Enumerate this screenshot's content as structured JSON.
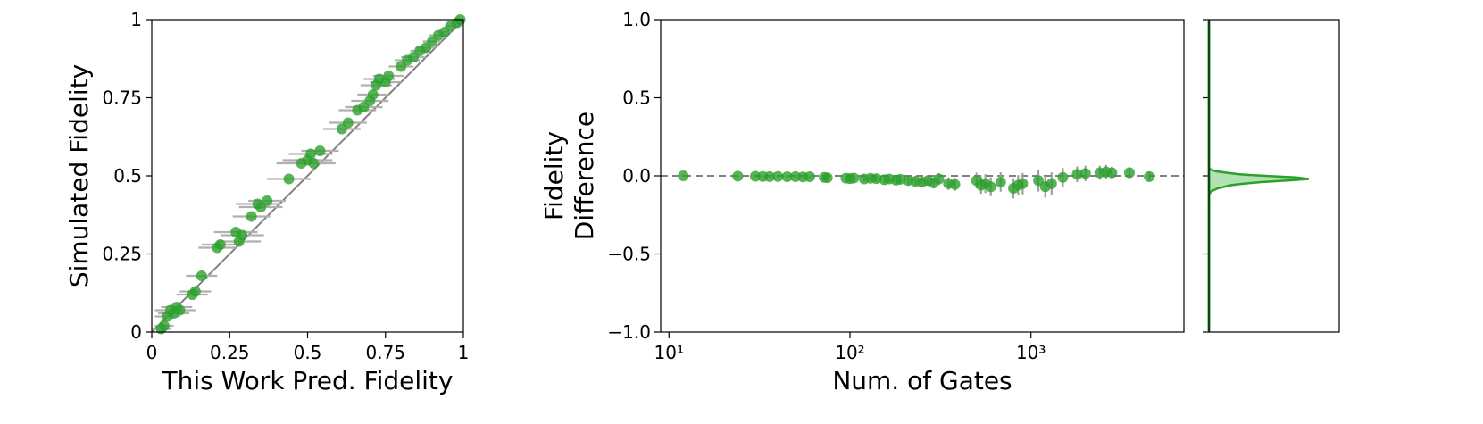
{
  "chart_data": [
    {
      "type": "scatter",
      "xlabel": "This Work Pred. Fidelity",
      "ylabel": "Simulated Fidelity",
      "xlim": [
        0,
        1
      ],
      "ylim": [
        0,
        1
      ],
      "xticks": [
        0,
        0.25,
        0.5,
        0.75,
        1
      ],
      "yticks": [
        0,
        0.25,
        0.5,
        0.75,
        1
      ],
      "color": "#2ca02c",
      "error_color": "#b0b0b0",
      "reference_line": "y=x",
      "reference_color": "#808080",
      "x": [
        0.03,
        0.04,
        0.05,
        0.06,
        0.07,
        0.08,
        0.09,
        0.13,
        0.14,
        0.16,
        0.21,
        0.22,
        0.27,
        0.28,
        0.29,
        0.32,
        0.34,
        0.35,
        0.37,
        0.44,
        0.48,
        0.5,
        0.51,
        0.52,
        0.54,
        0.61,
        0.63,
        0.66,
        0.68,
        0.7,
        0.71,
        0.72,
        0.73,
        0.75,
        0.76,
        0.8,
        0.82,
        0.84,
        0.86,
        0.88,
        0.9,
        0.92,
        0.94,
        0.96,
        0.98,
        0.99
      ],
      "values": [
        0.01,
        0.02,
        0.05,
        0.07,
        0.06,
        0.08,
        0.07,
        0.12,
        0.13,
        0.18,
        0.27,
        0.28,
        0.32,
        0.29,
        0.31,
        0.37,
        0.41,
        0.4,
        0.42,
        0.49,
        0.54,
        0.55,
        0.57,
        0.54,
        0.58,
        0.65,
        0.67,
        0.71,
        0.72,
        0.74,
        0.76,
        0.79,
        0.81,
        0.8,
        0.82,
        0.85,
        0.87,
        0.88,
        0.9,
        0.91,
        0.93,
        0.95,
        0.96,
        0.98,
        0.99,
        1.0
      ],
      "xerr": [
        0.03,
        0.03,
        0.04,
        0.05,
        0.05,
        0.05,
        0.05,
        0.05,
        0.05,
        0.05,
        0.06,
        0.06,
        0.07,
        0.07,
        0.07,
        0.06,
        0.07,
        0.07,
        0.06,
        0.07,
        0.08,
        0.08,
        0.07,
        0.07,
        0.06,
        0.06,
        0.06,
        0.06,
        0.06,
        0.06,
        0.05,
        0.05,
        0.05,
        0.05,
        0.05,
        0.04,
        0.04,
        0.04,
        0.03,
        0.03,
        0.03,
        0.03,
        0.02,
        0.02,
        0.02,
        0.01
      ]
    },
    {
      "type": "scatter",
      "xlabel": "Num. of Gates",
      "ylabel": [
        "Fidelity",
        "Difference"
      ],
      "log_x": true,
      "xlim": [
        9,
        7000
      ],
      "ylim": [
        -1,
        1
      ],
      "xticks": [
        {
          "value": 10,
          "label": "10¹"
        },
        {
          "value": 100,
          "label": "10²"
        },
        {
          "value": 1000,
          "label": "10³"
        }
      ],
      "yticks": [
        {
          "value": -1,
          "label": "−1.0"
        },
        {
          "value": -0.5,
          "label": "−0.5"
        },
        {
          "value": 0,
          "label": "0.0"
        },
        {
          "value": 0.5,
          "label": "0.5"
        },
        {
          "value": 1,
          "label": "1.0"
        }
      ],
      "color": "#2ca02c",
      "error_color": "#a0a0a0",
      "reference_y": 0,
      "reference_color": "#808080",
      "x": [
        12,
        24,
        30,
        33,
        36,
        40,
        45,
        50,
        55,
        60,
        72,
        75,
        95,
        100,
        105,
        120,
        130,
        140,
        155,
        165,
        180,
        190,
        210,
        230,
        250,
        270,
        290,
        310,
        350,
        380,
        500,
        530,
        560,
        600,
        680,
        800,
        850,
        900,
        1100,
        1200,
        1300,
        1500,
        1800,
        2000,
        2400,
        2600,
        2800,
        3500,
        4500
      ],
      "values": [
        0,
        -0.002,
        -0.003,
        -0.004,
        -0.005,
        -0.004,
        -0.006,
        -0.005,
        -0.007,
        -0.006,
        -0.01,
        -0.012,
        -0.015,
        -0.018,
        -0.014,
        -0.02,
        -0.016,
        -0.018,
        -0.025,
        -0.02,
        -0.028,
        -0.022,
        -0.03,
        -0.035,
        -0.04,
        -0.03,
        -0.045,
        -0.02,
        -0.05,
        -0.055,
        -0.03,
        -0.06,
        -0.05,
        -0.07,
        -0.04,
        -0.08,
        -0.06,
        -0.05,
        -0.03,
        -0.07,
        -0.05,
        -0.01,
        0.01,
        0.015,
        0.02,
        0.025,
        0.02,
        0.02,
        -0.005
      ],
      "yerr": [
        0.005,
        0.006,
        0.006,
        0.007,
        0.007,
        0.008,
        0.008,
        0.009,
        0.009,
        0.01,
        0.012,
        0.012,
        0.014,
        0.015,
        0.015,
        0.018,
        0.018,
        0.02,
        0.022,
        0.022,
        0.025,
        0.025,
        0.028,
        0.03,
        0.032,
        0.034,
        0.036,
        0.038,
        0.04,
        0.042,
        0.05,
        0.055,
        0.06,
        0.06,
        0.062,
        0.065,
        0.065,
        0.068,
        0.07,
        0.07,
        0.072,
        0.06,
        0.05,
        0.05,
        0.045,
        0.045,
        0.04,
        0.035,
        0.03
      ]
    },
    {
      "type": "density",
      "xlim": [
        0,
        30
      ],
      "ylim": [
        -1,
        1
      ],
      "yticks": [
        -1,
        -0.5,
        0,
        0.5,
        1
      ],
      "color": "#2ca02c",
      "fill": "#9fd99f",
      "y": [
        -0.12,
        -0.1,
        -0.08,
        -0.06,
        -0.05,
        -0.04,
        -0.03,
        -0.02,
        -0.01,
        0,
        0.01,
        0.02,
        0.03,
        0.04,
        0.05
      ],
      "values": [
        0,
        0.5,
        2,
        5,
        8,
        12,
        18,
        23,
        20,
        13,
        7,
        4,
        1.5,
        0.5,
        0
      ]
    }
  ]
}
